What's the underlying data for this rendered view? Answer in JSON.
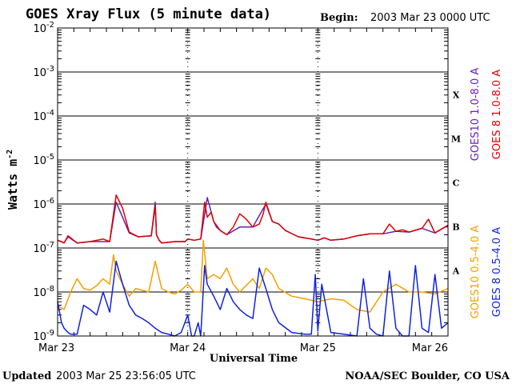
{
  "chart_data": {
    "type": "line",
    "title": "GOES Xray Flux (5 minute data)",
    "begin_label": "Begin:",
    "begin_value": "2003 Mar 23 0000 UTC",
    "ylabel": "Watts m",
    "ylabel_sup": "-2",
    "xlabel": "Universal Time",
    "y_scale": "log",
    "ylim": [
      1e-09,
      0.01
    ],
    "y_ticks": [
      {
        "base": "10",
        "exp": "-2",
        "value": 0.01
      },
      {
        "base": "10",
        "exp": "-3",
        "value": 0.001
      },
      {
        "base": "10",
        "exp": "-4",
        "value": 0.0001
      },
      {
        "base": "10",
        "exp": "-5",
        "value": 1e-05
      },
      {
        "base": "10",
        "exp": "-6",
        "value": 1e-06
      },
      {
        "base": "10",
        "exp": "-7",
        "value": 1e-07
      },
      {
        "base": "10",
        "exp": "-8",
        "value": 1e-08
      },
      {
        "base": "10",
        "exp": "-9",
        "value": 1e-09
      }
    ],
    "x_unit": "days since 2003 Mar 23 0000 UTC",
    "xlim": [
      0,
      3
    ],
    "x_ticks": [
      {
        "label": "Mar 23",
        "value": 0
      },
      {
        "label": "Mar 24",
        "value": 1
      },
      {
        "label": "Mar 25",
        "value": 2
      },
      {
        "label": "Mar 26",
        "value": 3
      }
    ],
    "flare_classes": [
      {
        "label": "X",
        "low": 0.0001,
        "high": 0.001
      },
      {
        "label": "M",
        "low": 1e-05,
        "high": 0.0001
      },
      {
        "label": "C",
        "low": 1e-06,
        "high": 1e-05
      },
      {
        "label": "B",
        "low": 1e-07,
        "high": 1e-06
      },
      {
        "label": "A",
        "low": 1e-08,
        "high": 1e-07
      }
    ],
    "series": [
      {
        "name": "GOES10 1.0-8.0 A",
        "color": "#6a1fb5",
        "x": [
          0.0,
          0.05,
          0.08,
          0.15,
          0.25,
          0.4,
          0.45,
          0.55,
          0.62,
          0.72,
          0.75,
          0.76,
          0.78,
          0.8,
          0.9,
          0.98,
          1.0,
          1.05,
          1.1,
          1.15,
          1.2,
          1.22,
          1.25,
          1.3,
          1.4,
          1.5,
          1.6,
          1.65,
          1.7,
          1.75,
          1.85,
          1.95,
          2.0,
          2.05,
          2.1,
          2.2,
          2.3,
          2.4,
          2.5,
          2.6,
          2.7,
          2.8,
          2.9,
          3.0
        ],
        "values": [
          1.5e-07,
          1.3e-07,
          1.8e-07,
          1.3e-07,
          1.4e-07,
          1.4e-07,
          1.1e-06,
          2.2e-07,
          1.8e-07,
          1.9e-07,
          1.1e-06,
          2e-07,
          1.5e-07,
          1.3e-07,
          1.4e-07,
          1.4e-07,
          1.6e-07,
          1.5e-07,
          1.6e-07,
          1.4e-06,
          4e-07,
          3e-07,
          2.5e-07,
          2e-07,
          3e-07,
          3e-07,
          1e-06,
          4e-07,
          3.5e-07,
          2.5e-07,
          1.8e-07,
          1.6e-07,
          1.5e-07,
          1.7e-07,
          1.5e-07,
          1.6e-07,
          1.9e-07,
          2.1e-07,
          2.1e-07,
          2.4e-07,
          2.3e-07,
          2.8e-07,
          2.2e-07,
          3.3e-07
        ]
      },
      {
        "name": "GOES 8 1.0-8.0 A",
        "color": "#dd0000",
        "x": [
          0.0,
          0.03,
          0.05,
          0.08,
          0.15,
          0.25,
          0.35,
          0.4,
          0.45,
          0.5,
          0.55,
          0.62,
          0.72,
          0.75,
          0.76,
          0.78,
          0.8,
          0.9,
          0.98,
          1.0,
          1.05,
          1.1,
          1.13,
          1.15,
          1.18,
          1.2,
          1.25,
          1.3,
          1.35,
          1.4,
          1.45,
          1.5,
          1.55,
          1.58,
          1.6,
          1.63,
          1.65,
          1.7,
          1.75,
          1.85,
          1.95,
          2.0,
          2.05,
          2.1,
          2.2,
          2.3,
          2.4,
          2.5,
          2.55,
          2.6,
          2.65,
          2.7,
          2.8,
          2.85,
          2.9,
          3.0
        ],
        "values": [
          1.5e-07,
          1.4e-07,
          1.3e-07,
          1.9e-07,
          1.3e-07,
          1.4e-07,
          1.6e-07,
          1.4e-07,
          1.6e-06,
          8e-07,
          2.3e-07,
          1.8e-07,
          1.9e-07,
          9e-07,
          2e-07,
          1.5e-07,
          1.3e-07,
          1.4e-07,
          1.4e-07,
          1.6e-07,
          1.5e-07,
          1.6e-07,
          1.1e-06,
          5e-07,
          6.5e-07,
          4e-07,
          2.5e-07,
          2e-07,
          3e-07,
          6e-07,
          4.5e-07,
          3e-07,
          3.5e-07,
          6e-07,
          1.1e-06,
          6e-07,
          4e-07,
          3.5e-07,
          2.5e-07,
          1.8e-07,
          1.6e-07,
          1.5e-07,
          1.7e-07,
          1.5e-07,
          1.6e-07,
          1.9e-07,
          2.1e-07,
          2.1e-07,
          3.5e-07,
          2.4e-07,
          2.6e-07,
          2.3e-07,
          2.8e-07,
          4.5e-07,
          2.2e-07,
          3.3e-07
        ]
      },
      {
        "name": "GOES10 0.5-4.0 A",
        "color": "#f0a000",
        "x": [
          0.0,
          0.05,
          0.1,
          0.15,
          0.2,
          0.25,
          0.3,
          0.35,
          0.4,
          0.43,
          0.45,
          0.5,
          0.55,
          0.6,
          0.7,
          0.75,
          0.8,
          0.85,
          0.9,
          0.95,
          1.0,
          1.05,
          1.1,
          1.12,
          1.15,
          1.2,
          1.25,
          1.3,
          1.35,
          1.4,
          1.5,
          1.55,
          1.6,
          1.65,
          1.7,
          1.8,
          1.9,
          2.0,
          2.1,
          2.2,
          2.3,
          2.4,
          2.5,
          2.6,
          2.7,
          2.8,
          2.9,
          3.0
        ],
        "values": [
          5e-09,
          4e-09,
          1e-08,
          2e-08,
          1.2e-08,
          1.1e-08,
          1.4e-08,
          2e-08,
          1.5e-08,
          7e-08,
          3e-08,
          1.5e-08,
          8e-09,
          1.2e-08,
          1e-08,
          5e-08,
          1.2e-08,
          1e-08,
          9e-09,
          1.1e-08,
          1.5e-08,
          1e-08,
          1e-08,
          1.5e-07,
          2e-08,
          2.5e-08,
          2e-08,
          3.5e-08,
          1.5e-08,
          1e-08,
          2e-08,
          1.2e-08,
          3.5e-08,
          2.5e-08,
          1.2e-08,
          8e-09,
          7e-09,
          6e-09,
          7e-09,
          6.5e-09,
          4e-09,
          3.5e-09,
          1e-08,
          1.5e-08,
          1e-08,
          1e-08,
          9e-09,
          1.2e-08
        ]
      },
      {
        "name": "GOES 8 0.5-4.0 A",
        "color": "#1022e0",
        "x": [
          0.0,
          0.03,
          0.05,
          0.08,
          0.1,
          0.15,
          0.2,
          0.25,
          0.3,
          0.35,
          0.4,
          0.45,
          0.5,
          0.55,
          0.6,
          0.65,
          0.7,
          0.75,
          0.8,
          0.85,
          0.9,
          0.95,
          1.0,
          1.03,
          1.05,
          1.08,
          1.1,
          1.13,
          1.15,
          1.2,
          1.25,
          1.3,
          1.35,
          1.4,
          1.45,
          1.5,
          1.55,
          1.6,
          1.65,
          1.7,
          1.8,
          1.9,
          1.95,
          1.98,
          2.0,
          2.03,
          2.1,
          2.2,
          2.3,
          2.35,
          2.4,
          2.45,
          2.5,
          2.55,
          2.6,
          2.65,
          2.7,
          2.75,
          2.8,
          2.85,
          2.9,
          2.95,
          3.0
        ],
        "values": [
          6e-09,
          2e-09,
          1.5e-09,
          1.2e-09,
          1.1e-09,
          1.1e-09,
          5e-09,
          4e-09,
          3e-09,
          1e-08,
          3.5e-09,
          5e-08,
          1.5e-08,
          5e-09,
          3e-09,
          2.5e-09,
          2e-09,
          1.5e-09,
          1.2e-09,
          1.1e-09,
          1e-09,
          1.2e-09,
          3e-09,
          1e-09,
          1e-09,
          2e-09,
          1e-09,
          4e-08,
          1.5e-08,
          8e-09,
          4e-09,
          1.2e-08,
          6e-09,
          4e-09,
          3e-09,
          2.5e-09,
          3.5e-08,
          1.2e-08,
          4e-09,
          2e-09,
          1.2e-09,
          1.1e-09,
          1.1e-09,
          2.5e-08,
          1.3e-09,
          1.5e-08,
          1.2e-09,
          1.1e-09,
          1e-09,
          2e-08,
          1.5e-09,
          1.1e-09,
          1e-09,
          3e-08,
          1.5e-09,
          1e-09,
          1e-09,
          4e-08,
          1.5e-09,
          1.2e-09,
          2.5e-08,
          1.5e-09,
          2e-09
        ]
      }
    ]
  },
  "footer": {
    "updated_label": "Updated",
    "updated_value": "2003 Mar 25 23:56:05 UTC",
    "credit": "NOAA/SEC Boulder, CO USA"
  }
}
